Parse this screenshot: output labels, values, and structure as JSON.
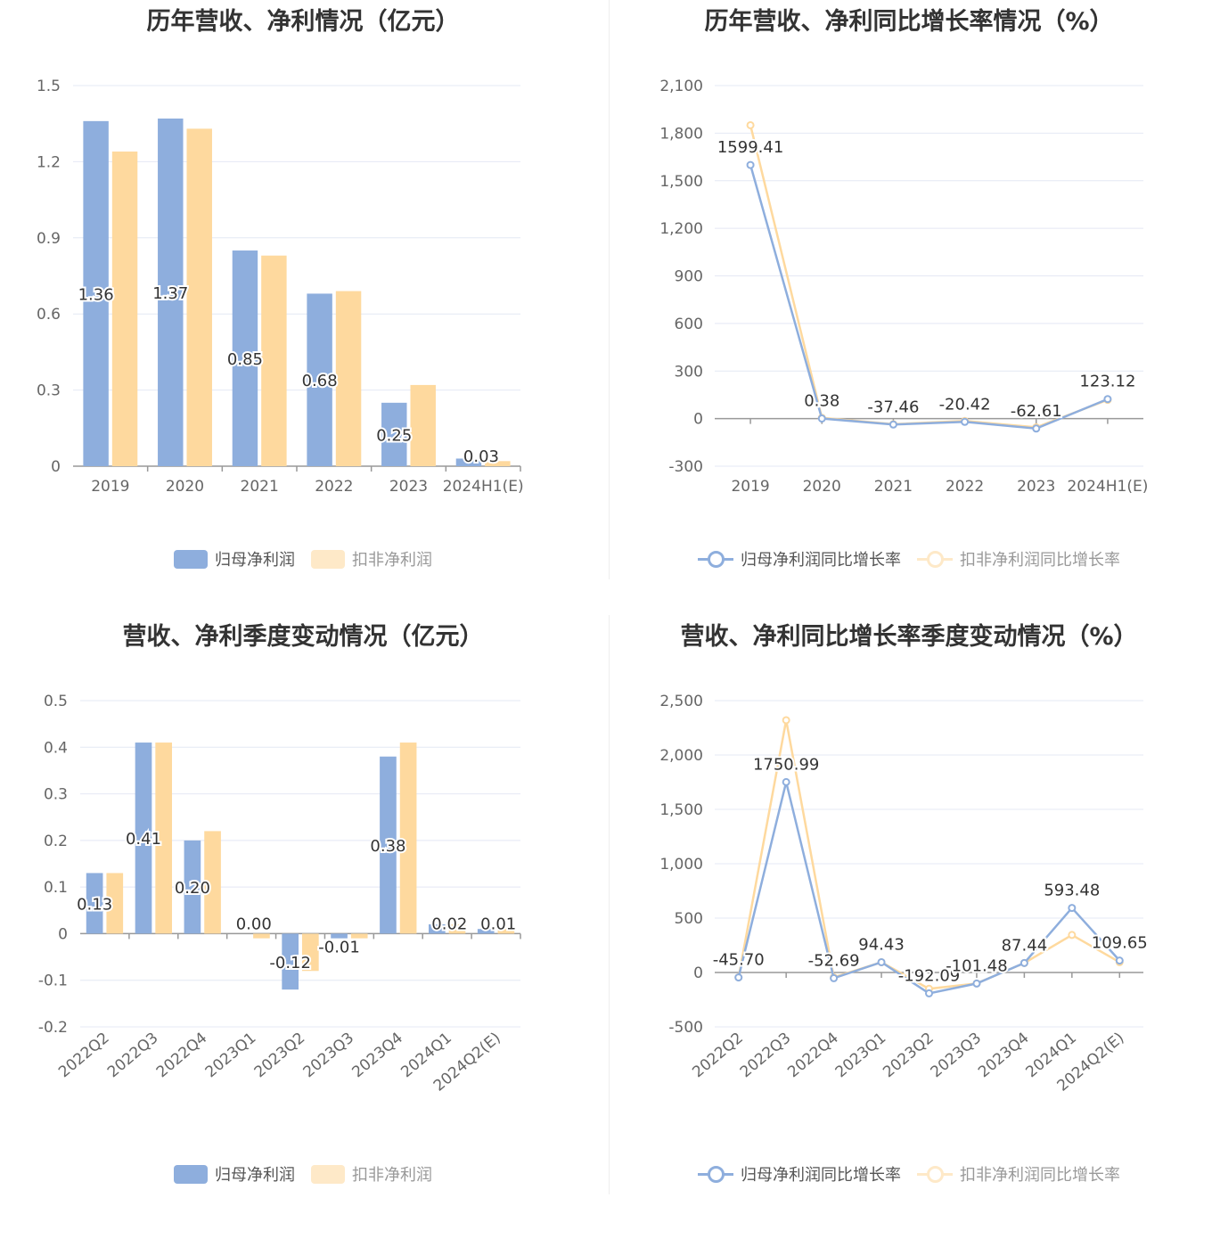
{
  "colors": {
    "series1": "#8eaedd",
    "series2": "#fed99e",
    "grid": "#e4e8f4",
    "axis_text": "#666666"
  },
  "chart_data": [
    {
      "type": "bar",
      "title": "历年营收、净利情况（亿元）",
      "categories": [
        "2019",
        "2020",
        "2021",
        "2022",
        "2023",
        "2024H1(E)"
      ],
      "yticks": [
        "1.5",
        "1.2",
        "0.9",
        "0.6",
        "0.3",
        "0"
      ],
      "ylim": [
        0,
        1.5
      ],
      "series": [
        {
          "name": "归母净利润",
          "values": [
            1.36,
            1.37,
            0.85,
            0.68,
            0.25,
            0.03
          ],
          "labels": [
            "1.36",
            "1.37",
            "0.85",
            "0.68",
            "0.25",
            "0.03"
          ]
        },
        {
          "name": "扣非净利润",
          "values": [
            1.24,
            1.33,
            0.83,
            0.69,
            0.32,
            0.02
          ]
        }
      ],
      "legend": "bottom-center",
      "grid": true
    },
    {
      "type": "line",
      "title": "历年营收、净利同比增长率情况（%）",
      "categories": [
        "2019",
        "2020",
        "2021",
        "2022",
        "2023",
        "2024H1(E)"
      ],
      "yticks": [
        "2,100",
        "1,800",
        "1,500",
        "1,200",
        "900",
        "600",
        "300",
        "0",
        "-300"
      ],
      "ylim": [
        -300,
        2100
      ],
      "series": [
        {
          "name": "归母净利润同比增长率",
          "values": [
            1599.41,
            0.38,
            -37.46,
            -20.42,
            -62.61,
            123.12
          ],
          "labels": [
            "1599.41",
            "0.38",
            "-37.46",
            "-20.42",
            "-62.61",
            "123.12"
          ]
        },
        {
          "name": "扣非净利润同比增长率",
          "values": [
            1850,
            5,
            -35,
            -15,
            -55,
            118
          ]
        }
      ],
      "legend": "bottom-center",
      "grid": true
    },
    {
      "type": "bar",
      "title": "营收、净利季度变动情况（亿元）",
      "categories": [
        "2022Q2",
        "2022Q3",
        "2022Q4",
        "2023Q1",
        "2023Q2",
        "2023Q3",
        "2023Q4",
        "2024Q1",
        "2024Q2(E)"
      ],
      "yticks": [
        "0.5",
        "0.4",
        "0.3",
        "0.2",
        "0.1",
        "0",
        "-0.1",
        "-0.2"
      ],
      "ylim": [
        -0.2,
        0.5
      ],
      "series": [
        {
          "name": "归母净利润",
          "values": [
            0.13,
            0.41,
            0.2,
            0.0,
            -0.12,
            -0.01,
            0.38,
            0.02,
            0.01
          ],
          "labels": [
            "0.13",
            "0.41",
            "0.20",
            "0.00",
            "-0.12",
            "-0.01",
            "0.38",
            "0.02",
            "0.01"
          ]
        },
        {
          "name": "扣非净利润",
          "values": [
            0.13,
            0.41,
            0.22,
            -0.01,
            -0.08,
            -0.01,
            0.41,
            0.02,
            0.01
          ]
        }
      ],
      "legend": "bottom-center",
      "grid": true
    },
    {
      "type": "line",
      "title": "营收、净利同比增长率季度变动情况（%）",
      "categories": [
        "2022Q2",
        "2022Q3",
        "2022Q4",
        "2023Q1",
        "2023Q2",
        "2023Q3",
        "2023Q4",
        "2024Q1",
        "2024Q2(E)"
      ],
      "yticks": [
        "2,500",
        "2,000",
        "1,500",
        "1,000",
        "500",
        "0",
        "-500"
      ],
      "ylim": [
        -500,
        2500
      ],
      "series": [
        {
          "name": "归母净利润同比增长率",
          "values": [
            -45.7,
            1750.99,
            -52.69,
            94.43,
            -192.09,
            -101.48,
            87.44,
            593.48,
            109.65
          ],
          "labels": [
            "-45.70",
            "1750.99",
            "-52.69",
            "94.43",
            "-192.09",
            "-101.48",
            "87.44",
            "593.48",
            "109.65"
          ]
        },
        {
          "name": "扣非净利润同比增长率",
          "values": [
            -45,
            2320,
            -45,
            94,
            -150,
            -101,
            87,
            345,
            95
          ]
        }
      ],
      "legend": "bottom-center",
      "grid": true
    }
  ]
}
